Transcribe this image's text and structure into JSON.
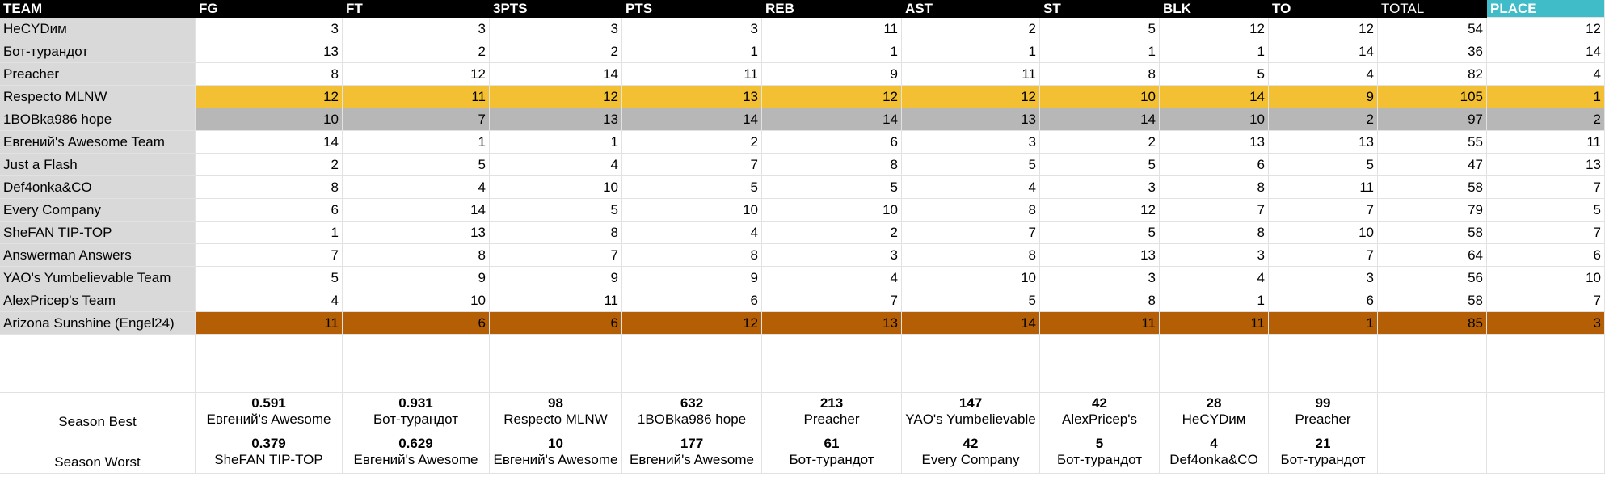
{
  "columns": [
    "TEAM",
    "FG",
    "FT",
    "3PTS",
    "PTS",
    "REB",
    "AST",
    "ST",
    "BLK",
    "TO",
    "TOTAL",
    "PLACE"
  ],
  "rows": [
    {
      "team": "НеСYDим",
      "values": [
        3,
        3,
        3,
        3,
        11,
        2,
        5,
        12,
        12,
        54,
        12
      ]
    },
    {
      "team": "Бот-турандот",
      "values": [
        13,
        2,
        2,
        1,
        1,
        1,
        1,
        1,
        14,
        36,
        14
      ]
    },
    {
      "team": "Preacher",
      "values": [
        8,
        12,
        14,
        11,
        9,
        11,
        8,
        5,
        4,
        82,
        4
      ]
    },
    {
      "team": "Respecto MLNW",
      "values": [
        12,
        11,
        12,
        13,
        12,
        12,
        10,
        14,
        9,
        105,
        1
      ],
      "highlight": "gold"
    },
    {
      "team": "1BOBka986 hope",
      "values": [
        10,
        7,
        13,
        14,
        14,
        13,
        14,
        10,
        2,
        97,
        2
      ],
      "highlight": "silver"
    },
    {
      "team": "Евгений's Awesome Team",
      "values": [
        14,
        1,
        1,
        2,
        6,
        3,
        2,
        13,
        13,
        55,
        11
      ]
    },
    {
      "team": "Just a Flash",
      "values": [
        2,
        5,
        4,
        7,
        8,
        5,
        5,
        6,
        5,
        47,
        13
      ]
    },
    {
      "team": "Def4onka&CO",
      "values": [
        8,
        4,
        10,
        5,
        5,
        4,
        3,
        8,
        11,
        58,
        7
      ]
    },
    {
      "team": "Every Company",
      "values": [
        6,
        14,
        5,
        10,
        10,
        8,
        12,
        7,
        7,
        79,
        5
      ]
    },
    {
      "team": "SheFAN TIP-TOP",
      "values": [
        1,
        13,
        8,
        4,
        2,
        7,
        5,
        8,
        10,
        58,
        7
      ]
    },
    {
      "team": "Answerman Answers",
      "values": [
        7,
        8,
        7,
        8,
        3,
        8,
        13,
        3,
        7,
        64,
        6
      ]
    },
    {
      "team": "YAO's Yumbelievable Team",
      "values": [
        5,
        9,
        9,
        9,
        4,
        10,
        3,
        4,
        3,
        56,
        10
      ]
    },
    {
      "team": "AlexPricep's Team",
      "values": [
        4,
        10,
        11,
        6,
        7,
        5,
        8,
        1,
        6,
        58,
        7
      ]
    },
    {
      "team": "Arizona Sunshine (Engel24)",
      "values": [
        11,
        6,
        6,
        12,
        13,
        14,
        11,
        11,
        1,
        85,
        3
      ],
      "highlight": "bronze"
    }
  ],
  "season_best": {
    "label": "Season Best",
    "stats": [
      {
        "value": "0.591",
        "team": "Евгений's Awesome"
      },
      {
        "value": "0.931",
        "team": "Бот-турандот"
      },
      {
        "value": "98",
        "team": "Respecto MLNW"
      },
      {
        "value": "632",
        "team": "1BOBka986 hope"
      },
      {
        "value": "213",
        "team": "Preacher"
      },
      {
        "value": "147",
        "team": "YAO's Yumbelievable"
      },
      {
        "value": "42",
        "team": "AlexPricep's"
      },
      {
        "value": "28",
        "team": "НеСYDим"
      },
      {
        "value": "99",
        "team": "Preacher"
      }
    ]
  },
  "season_worst": {
    "label": "Season Worst",
    "stats": [
      {
        "value": "0.379",
        "team": "SheFAN TIP-TOP"
      },
      {
        "value": "0.629",
        "team": "Евгений's Awesome"
      },
      {
        "value": "10",
        "team": "Евгений's Awesome"
      },
      {
        "value": "177",
        "team": "Евгений's Awesome"
      },
      {
        "value": "61",
        "team": "Бот-турандот"
      },
      {
        "value": "42",
        "team": "Every Company"
      },
      {
        "value": "5",
        "team": "Бот-турандот"
      },
      {
        "value": "4",
        "team": "Def4onka&CO"
      },
      {
        "value": "21",
        "team": "Бот-турандот"
      }
    ]
  },
  "colors": {
    "header_bg": "#000000",
    "place_header_bg": "#3fbcc8",
    "team_col_bg": "#d9d9d9",
    "gold": "#f3c033",
    "silver": "#b7b7b7",
    "bronze": "#b45f06"
  }
}
